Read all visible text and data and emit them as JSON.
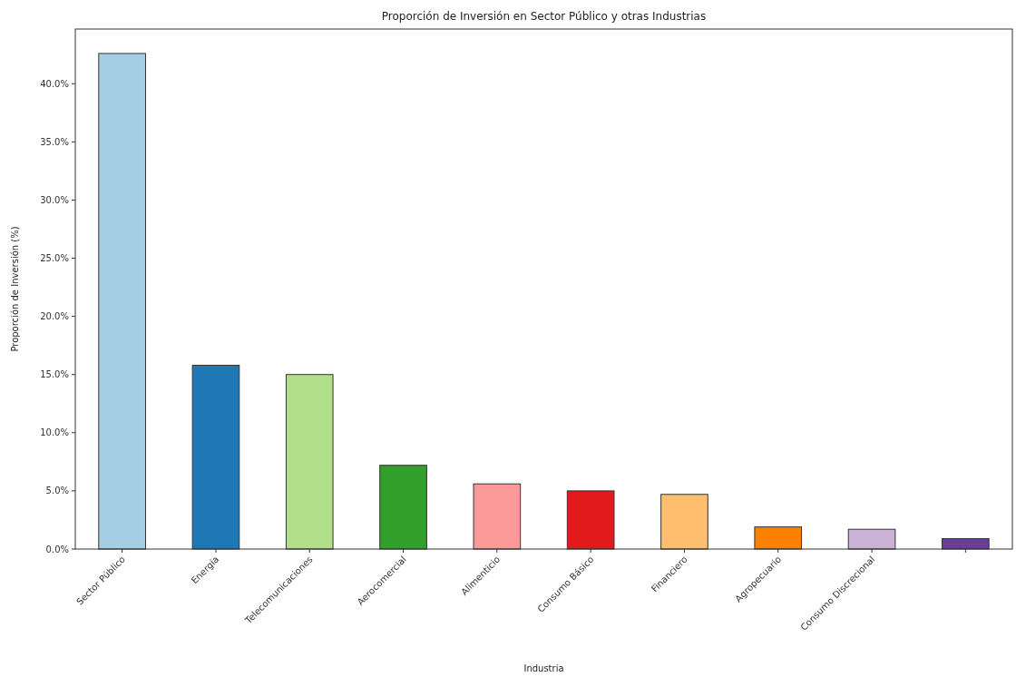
{
  "chart_data": {
    "type": "bar",
    "title": "Proporción de Inversión en Sector Público y otras Industrias",
    "xlabel": "Industria",
    "ylabel": "Proporción de Inversión (%)",
    "categories": [
      "Sector Público",
      "Energía",
      "Telecomunicaciones",
      "Aerocomercial",
      "Alimenticio",
      "Consumo Básico",
      "Financiero",
      "Agropecuario",
      "Consumo Discrecional",
      null
    ],
    "values": [
      42.6,
      15.8,
      15.0,
      7.2,
      5.6,
      5.0,
      4.7,
      1.9,
      1.7,
      0.9
    ],
    "colors": [
      "#a6cee3",
      "#1f78b4",
      "#b2df8a",
      "#33a02c",
      "#fb9a99",
      "#e31a1c",
      "#fdbf6f",
      "#ff7f00",
      "#cab2d6",
      "#6a3d9a"
    ],
    "ylim": [
      0,
      44.7
    ],
    "yticks": [
      {
        "value": 0,
        "label": "0.0%"
      },
      {
        "value": 5,
        "label": "5.0%"
      },
      {
        "value": 10,
        "label": "10.0%"
      },
      {
        "value": 15,
        "label": "15.0%"
      },
      {
        "value": 20,
        "label": "20.0%"
      },
      {
        "value": 25,
        "label": "25.0%"
      },
      {
        "value": 30,
        "label": "30.0%"
      },
      {
        "value": 35,
        "label": "35.0%"
      },
      {
        "value": 40,
        "label": "40.0%"
      }
    ]
  }
}
